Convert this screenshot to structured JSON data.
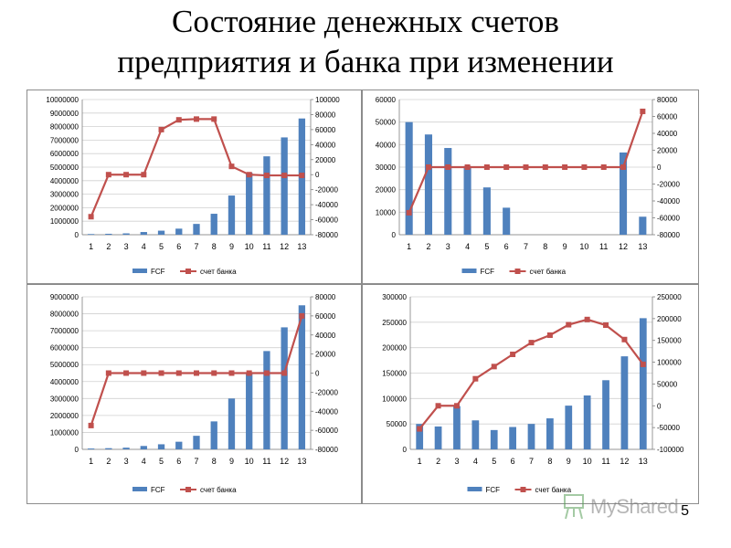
{
  "title": {
    "line1": "Состояние денежных счетов",
    "line2": "предприятия и банка при изменении"
  },
  "page_number": "5",
  "watermark": {
    "text": "MyShared",
    "icon": "presentation-board-icon"
  },
  "colors": {
    "bar": "#4f81bd",
    "line": "#c0504d",
    "grid": "#d0d0d0",
    "axis": "#7f7f7f"
  },
  "chart_data": [
    {
      "type": "bar+line",
      "categories": [
        "1",
        "2",
        "3",
        "4",
        "5",
        "6",
        "7",
        "8",
        "9",
        "10",
        "11",
        "12",
        "13"
      ],
      "series": [
        {
          "name": "FCF",
          "type": "bar",
          "axis": "left",
          "values": [
            50000,
            70000,
            100000,
            200000,
            300000,
            450000,
            800000,
            1550000,
            2900000,
            4600000,
            5800000,
            7200000,
            8600000
          ]
        },
        {
          "name": "счет банка",
          "type": "line",
          "axis": "right",
          "values": [
            -56000,
            0,
            0,
            0,
            60000,
            73000,
            74000,
            74000,
            11000,
            0,
            -1000,
            -1000,
            -1000
          ]
        }
      ],
      "y_left": {
        "min": 0,
        "max": 10000000,
        "step": 1000000,
        "ticks": [
          "0",
          "1000000",
          "2000000",
          "3000000",
          "4000000",
          "5000000",
          "6000000",
          "7000000",
          "8000000",
          "9000000",
          "10000000"
        ]
      },
      "y_right": {
        "min": -80000,
        "max": 100000,
        "step": 20000,
        "ticks": [
          "-80000",
          "-60000",
          "-40000",
          "-20000",
          "0",
          "20000",
          "40000",
          "60000",
          "80000",
          "100000"
        ]
      },
      "grid": true,
      "legend": "bottom"
    },
    {
      "type": "bar+line",
      "categories": [
        "1",
        "2",
        "3",
        "4",
        "5",
        "6",
        "7",
        "8",
        "9",
        "10",
        "11",
        "12",
        "13"
      ],
      "series": [
        {
          "name": "FCF",
          "type": "bar",
          "axis": "left",
          "values": [
            50000,
            44500,
            38500,
            30500,
            21000,
            12000,
            0,
            0,
            0,
            0,
            0,
            36500,
            8000
          ]
        },
        {
          "name": "счет банка",
          "type": "line",
          "axis": "right",
          "values": [
            -54000,
            0,
            0,
            0,
            0,
            0,
            0,
            0,
            0,
            0,
            0,
            0,
            66000
          ]
        }
      ],
      "y_left": {
        "min": 0,
        "max": 60000,
        "step": 10000,
        "ticks": [
          "0",
          "10000",
          "20000",
          "30000",
          "40000",
          "50000",
          "60000"
        ]
      },
      "y_right": {
        "min": -80000,
        "max": 80000,
        "step": 20000,
        "ticks": [
          "-80000",
          "-60000",
          "-40000",
          "-20000",
          "0",
          "20000",
          "40000",
          "60000",
          "80000"
        ]
      },
      "grid": true,
      "legend": "bottom"
    },
    {
      "type": "bar+line",
      "categories": [
        "1",
        "2",
        "3",
        "4",
        "5",
        "6",
        "7",
        "8",
        "9",
        "10",
        "11",
        "12",
        "13"
      ],
      "series": [
        {
          "name": "FCF",
          "type": "bar",
          "axis": "left",
          "values": [
            50000,
            70000,
            100000,
            200000,
            300000,
            450000,
            800000,
            1650000,
            3000000,
            4500000,
            5800000,
            7200000,
            8500000
          ]
        },
        {
          "name": "счет банка",
          "type": "line",
          "axis": "right",
          "values": [
            -55000,
            0,
            0,
            0,
            0,
            0,
            0,
            0,
            0,
            0,
            0,
            0,
            60000
          ]
        }
      ],
      "y_left": {
        "min": 0,
        "max": 9000000,
        "step": 1000000,
        "ticks": [
          "0",
          "1000000",
          "2000000",
          "3000000",
          "4000000",
          "5000000",
          "6000000",
          "7000000",
          "8000000",
          "9000000"
        ]
      },
      "y_right": {
        "min": -80000,
        "max": 80000,
        "step": 20000,
        "ticks": [
          "-80000",
          "-60000",
          "-40000",
          "-20000",
          "0",
          "20000",
          "40000",
          "60000",
          "80000"
        ]
      },
      "grid": true,
      "legend": "bottom"
    },
    {
      "type": "bar+line",
      "categories": [
        "1",
        "2",
        "3",
        "4",
        "5",
        "6",
        "7",
        "8",
        "9",
        "10",
        "11",
        "12",
        "13"
      ],
      "series": [
        {
          "name": "FCF",
          "type": "bar",
          "axis": "left",
          "values": [
            50000,
            45000,
            85000,
            57000,
            38000,
            44000,
            50000,
            61000,
            86000,
            106000,
            136000,
            183000,
            258000
          ]
        },
        {
          "name": "счет банка",
          "type": "line",
          "axis": "right",
          "values": [
            -53000,
            0,
            0,
            62000,
            90000,
            118000,
            145000,
            162000,
            186000,
            198000,
            185000,
            152000,
            95000
          ]
        }
      ],
      "y_left": {
        "min": 0,
        "max": 300000,
        "step": 50000,
        "ticks": [
          "0",
          "50000",
          "100000",
          "150000",
          "200000",
          "250000",
          "300000"
        ]
      },
      "y_right": {
        "min": -100000,
        "max": 250000,
        "step": 50000,
        "ticks": [
          "-100000",
          "-50000",
          "0",
          "50000",
          "100000",
          "150000",
          "200000",
          "250000"
        ]
      },
      "grid": true,
      "legend": "bottom"
    }
  ]
}
